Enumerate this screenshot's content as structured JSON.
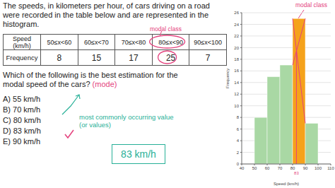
{
  "intro": "The speeds, in kilometers per hour, of cars driving on a road were recorded in the table below and are represented in the histogram.",
  "table": {
    "header": [
      "Speed (km/h)",
      "50≤x<60",
      "60≤x<70",
      "70≤x<80",
      "80≤x<90",
      "90≤x<100"
    ],
    "rows": [
      [
        "Frequency",
        8,
        15,
        17,
        25,
        7
      ]
    ]
  },
  "table_annotation": "modal class",
  "question": "Which of the following is the best estimation for the modal speed of the cars?",
  "question_note": "(mode)",
  "options": [
    "A) 55 km/h",
    "B) 70 km/h",
    "C) 80 km/h",
    "D) 83 km/h",
    "E) 90 km/h"
  ],
  "option_note": "most commonly occurring value (or values)",
  "answer": "83 km/h",
  "chart_data": {
    "type": "histogram",
    "bins": [
      50,
      60,
      70,
      80,
      90,
      100
    ],
    "values": [
      8,
      15,
      17,
      25,
      7
    ],
    "colors": [
      "#a9d8a4",
      "#a9d8a4",
      "#a9d8a4",
      "#f5a21b",
      "#a9d8a4"
    ],
    "xlabel": "Speed (km/h)",
    "ylabel": "Frequency",
    "xlim": [
      40,
      110
    ],
    "xticks": [
      40,
      50,
      60,
      70,
      80,
      90,
      100,
      110
    ],
    "ylim": [
      0,
      26
    ],
    "yticks": [
      0,
      2,
      4,
      6,
      8,
      10,
      12,
      14,
      16,
      18,
      20,
      22,
      24,
      26
    ],
    "grid": true,
    "annotations": {
      "label": "modal class",
      "mode_x": 83
    }
  }
}
